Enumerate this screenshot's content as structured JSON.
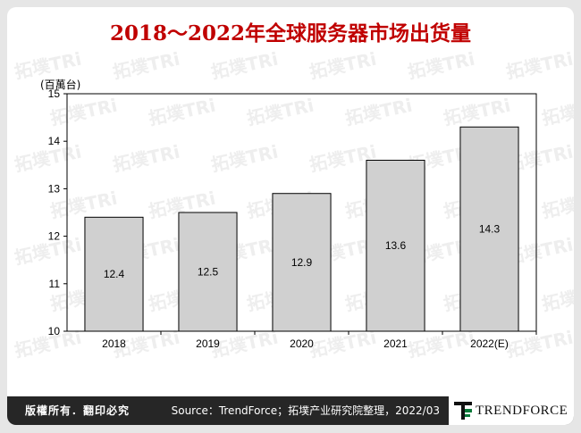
{
  "title": "2018～2022年全球服务器市场出货量",
  "unit_label": "(百萬台)",
  "chart_data": {
    "type": "bar",
    "title": "2018～2022年全球服务器市场出货量",
    "ylabel": "(百萬台)",
    "xlabel": "",
    "categories": [
      "2018",
      "2019",
      "2020",
      "2021",
      "2022(E)"
    ],
    "values": [
      12.4,
      12.5,
      12.9,
      13.6,
      14.3
    ],
    "ylim": [
      10,
      15
    ],
    "yticks": [
      10,
      11,
      12,
      13,
      14,
      15
    ],
    "grid": false,
    "bar_color": "#d0d0d0",
    "bar_border_color": "#000000"
  },
  "footer": {
    "copyright": "版權所有．翻印必究",
    "source": "Source：TrendForce；拓墣产业研究院整理，2022/03",
    "logo_text": "TRENDFORCE"
  },
  "colors": {
    "title": "#c00000",
    "footer_bg": "#262626",
    "logo_accent": "#0a7a3a"
  }
}
